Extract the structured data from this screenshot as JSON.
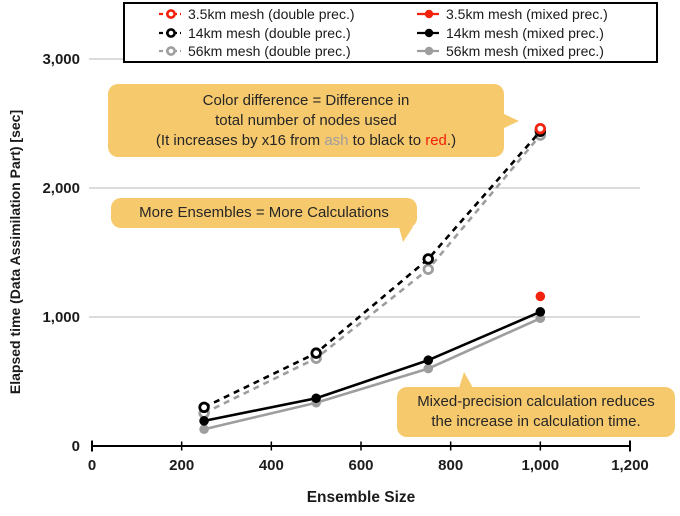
{
  "chart_data": {
    "type": "line",
    "title": "",
    "xlabel": "Ensemble Size",
    "ylabel": "Elapsed time (Data Assimilation Part) [sec]",
    "xlim": [
      0,
      1200
    ],
    "ylim": [
      0,
      3000
    ],
    "x_ticks": [
      0,
      200,
      400,
      600,
      800,
      1000,
      1200
    ],
    "x_tick_labels": [
      "0",
      "200",
      "400",
      "600",
      "800",
      "1,000",
      "1,200"
    ],
    "y_ticks": [
      0,
      1000,
      2000,
      3000
    ],
    "y_tick_labels": [
      "0",
      "1,000",
      "2,000",
      "3,000"
    ],
    "grid": "horizontal-only",
    "legend_position": "top",
    "series": [
      {
        "name": "3.5km mesh (double prec.)",
        "color": "#f2220d",
        "line": "dashed",
        "marker": "open",
        "x": [
          1000
        ],
        "y": [
          2460
        ]
      },
      {
        "name": "14km mesh (double prec.)",
        "color": "#000000",
        "line": "dashed",
        "marker": "open",
        "x": [
          250,
          500,
          750,
          1000
        ],
        "y": [
          300,
          720,
          1450,
          2440
        ]
      },
      {
        "name": "56km mesh (double prec.)",
        "color": "#9e9e9e",
        "line": "dashed",
        "marker": "open",
        "x": [
          250,
          500,
          750,
          1000
        ],
        "y": [
          255,
          680,
          1370,
          2410
        ]
      },
      {
        "name": "3.5km mesh (mixed prec.)",
        "color": "#f2220d",
        "line": "solid",
        "marker": "filled",
        "x": [
          1000
        ],
        "y": [
          1160
        ]
      },
      {
        "name": "14km mesh (mixed prec.)",
        "color": "#000000",
        "line": "solid",
        "marker": "filled",
        "x": [
          250,
          500,
          750,
          1000
        ],
        "y": [
          195,
          370,
          665,
          1040
        ]
      },
      {
        "name": "56km mesh (mixed prec.)",
        "color": "#9e9e9e",
        "line": "solid",
        "marker": "filled",
        "x": [
          250,
          500,
          750,
          1000
        ],
        "y": [
          130,
          335,
          600,
          990
        ]
      }
    ]
  },
  "annotations": {
    "color_difference": {
      "lines": [
        [
          {
            "t": "Color difference = Difference in"
          }
        ],
        [
          {
            "t": "total number of nodes used"
          }
        ],
        [
          {
            "t": "(It increases by x16 from "
          },
          {
            "t": "ash",
            "c": "#9e9e9e"
          },
          {
            "t": " to black to "
          },
          {
            "t": "red",
            "c": "#f2220d"
          },
          {
            "t": ".)"
          }
        ]
      ]
    },
    "more_ensembles": {
      "lines": [
        [
          {
            "t": "More Ensembles = More Calculations"
          }
        ]
      ]
    },
    "mixed_precision": {
      "lines": [
        [
          {
            "t": "Mixed-precision calculation reduces"
          }
        ],
        [
          {
            "t": "the increase in calculation time."
          }
        ]
      ]
    }
  },
  "colors": {
    "callout_bg": "#f6c96d",
    "grid_line": "#c6c6c6",
    "axis": "#000000",
    "ash": "#9e9e9e",
    "red": "#f2220d",
    "black": "#000000"
  }
}
